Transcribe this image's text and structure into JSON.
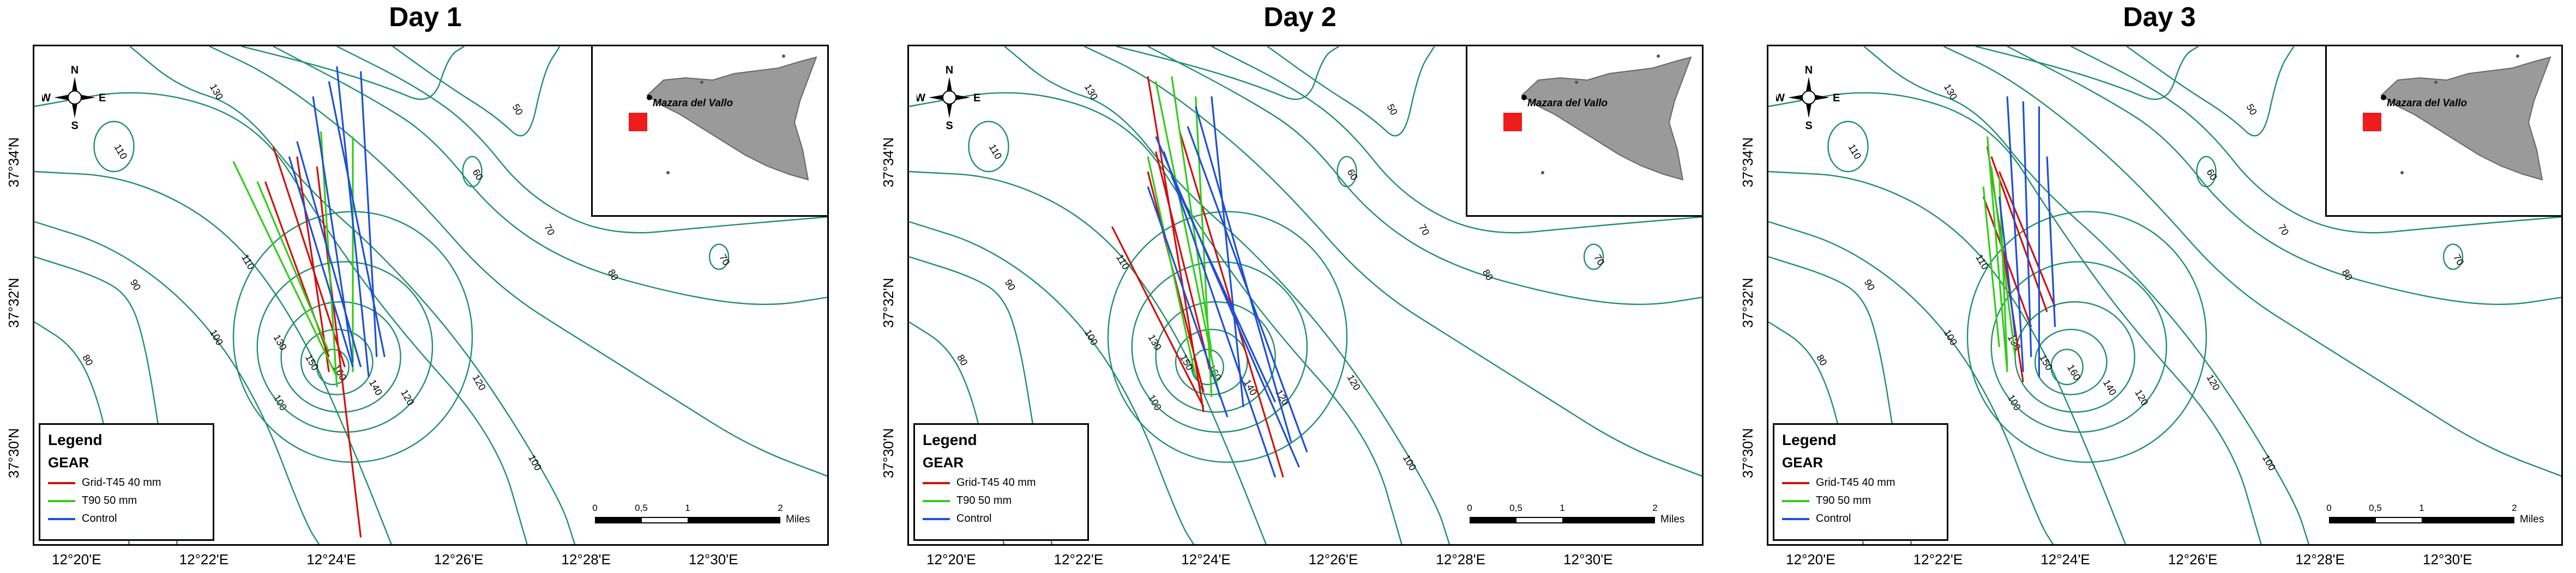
{
  "panels": [
    {
      "title": "Day 1",
      "tracks": [
        {
          "gear": "grid",
          "from": [
            0.3,
            0.2
          ],
          "to": [
            0.39,
            0.64
          ]
        },
        {
          "gear": "grid",
          "from": [
            0.33,
            0.22
          ],
          "to": [
            0.37,
            0.65
          ]
        },
        {
          "gear": "grid",
          "from": [
            0.355,
            0.24
          ],
          "to": [
            0.41,
            0.98
          ]
        },
        {
          "gear": "grid",
          "from": [
            0.29,
            0.27
          ],
          "to": [
            0.37,
            0.62
          ]
        },
        {
          "gear": "t90",
          "from": [
            0.25,
            0.23
          ],
          "to": [
            0.38,
            0.66
          ]
        },
        {
          "gear": "t90",
          "from": [
            0.36,
            0.17
          ],
          "to": [
            0.38,
            0.68
          ]
        },
        {
          "gear": "t90",
          "from": [
            0.4,
            0.18
          ],
          "to": [
            0.4,
            0.65
          ]
        },
        {
          "gear": "t90",
          "from": [
            0.28,
            0.27
          ],
          "to": [
            0.37,
            0.61
          ]
        },
        {
          "gear": "control",
          "from": [
            0.38,
            0.04
          ],
          "to": [
            0.42,
            0.66
          ]
        },
        {
          "gear": "control",
          "from": [
            0.41,
            0.05
          ],
          "to": [
            0.43,
            0.62
          ]
        },
        {
          "gear": "control",
          "from": [
            0.35,
            0.1
          ],
          "to": [
            0.4,
            0.63
          ]
        },
        {
          "gear": "control",
          "from": [
            0.33,
            0.19
          ],
          "to": [
            0.41,
            0.64
          ]
        },
        {
          "gear": "control",
          "from": [
            0.32,
            0.22
          ],
          "to": [
            0.4,
            0.64
          ]
        },
        {
          "gear": "control",
          "from": [
            0.37,
            0.07
          ],
          "to": [
            0.44,
            0.62
          ]
        }
      ]
    },
    {
      "title": "Day 2",
      "tracks": [
        {
          "gear": "grid",
          "from": [
            0.3,
            0.06
          ],
          "to": [
            0.37,
            0.73
          ]
        },
        {
          "gear": "grid",
          "from": [
            0.31,
            0.21
          ],
          "to": [
            0.38,
            0.66
          ]
        },
        {
          "gear": "grid",
          "from": [
            0.3,
            0.25
          ],
          "to": [
            0.37,
            0.69
          ]
        },
        {
          "gear": "grid",
          "from": [
            0.255,
            0.36
          ],
          "to": [
            0.37,
            0.72
          ]
        },
        {
          "gear": "grid",
          "from": [
            0.34,
            0.17
          ],
          "to": [
            0.47,
            0.86
          ]
        },
        {
          "gear": "t90",
          "from": [
            0.31,
            0.07
          ],
          "to": [
            0.39,
            0.7
          ]
        },
        {
          "gear": "t90",
          "from": [
            0.33,
            0.06
          ],
          "to": [
            0.38,
            0.61
          ]
        },
        {
          "gear": "t90",
          "from": [
            0.36,
            0.1
          ],
          "to": [
            0.38,
            0.7
          ]
        },
        {
          "gear": "t90",
          "from": [
            0.3,
            0.22
          ],
          "to": [
            0.36,
            0.66
          ]
        },
        {
          "gear": "control",
          "from": [
            0.31,
            0.18
          ],
          "to": [
            0.49,
            0.84
          ]
        },
        {
          "gear": "control",
          "from": [
            0.32,
            0.21
          ],
          "to": [
            0.46,
            0.86
          ]
        },
        {
          "gear": "control",
          "from": [
            0.35,
            0.16
          ],
          "to": [
            0.5,
            0.81
          ]
        },
        {
          "gear": "control",
          "from": [
            0.36,
            0.12
          ],
          "to": [
            0.48,
            0.79
          ]
        },
        {
          "gear": "control",
          "from": [
            0.33,
            0.26
          ],
          "to": [
            0.46,
            0.71
          ]
        },
        {
          "gear": "control",
          "from": [
            0.38,
            0.1
          ],
          "to": [
            0.42,
            0.72
          ]
        },
        {
          "gear": "control",
          "from": [
            0.3,
            0.28
          ],
          "to": [
            0.4,
            0.74
          ]
        }
      ]
    },
    {
      "title": "Day 3",
      "tracks": [
        {
          "gear": "grid",
          "from": [
            0.275,
            0.2
          ],
          "to": [
            0.32,
            0.67
          ]
        },
        {
          "gear": "grid",
          "from": [
            0.28,
            0.22
          ],
          "to": [
            0.35,
            0.53
          ]
        },
        {
          "gear": "grid",
          "from": [
            0.29,
            0.25
          ],
          "to": [
            0.36,
            0.52
          ]
        },
        {
          "gear": "grid",
          "from": [
            0.27,
            0.3
          ],
          "to": [
            0.33,
            0.56
          ]
        },
        {
          "gear": "t90",
          "from": [
            0.275,
            0.18
          ],
          "to": [
            0.3,
            0.65
          ]
        },
        {
          "gear": "t90",
          "from": [
            0.28,
            0.24
          ],
          "to": [
            0.31,
            0.62
          ]
        },
        {
          "gear": "t90",
          "from": [
            0.29,
            0.26
          ],
          "to": [
            0.3,
            0.64
          ]
        },
        {
          "gear": "t90",
          "from": [
            0.27,
            0.28
          ],
          "to": [
            0.29,
            0.6
          ]
        },
        {
          "gear": "control",
          "from": [
            0.3,
            0.1
          ],
          "to": [
            0.32,
            0.65
          ]
        },
        {
          "gear": "control",
          "from": [
            0.32,
            0.11
          ],
          "to": [
            0.33,
            0.62
          ]
        },
        {
          "gear": "control",
          "from": [
            0.34,
            0.12
          ],
          "to": [
            0.34,
            0.66
          ]
        },
        {
          "gear": "control",
          "from": [
            0.35,
            0.22
          ],
          "to": [
            0.36,
            0.56
          ]
        },
        {
          "gear": "control",
          "from": [
            0.29,
            0.3
          ],
          "to": [
            0.31,
            0.58
          ]
        }
      ]
    }
  ],
  "axes": {
    "lat_labels": [
      "37°34'N",
      "37°32'N",
      "37°30'N"
    ],
    "lon_labels": [
      "12°20'E",
      "12°22'E",
      "12°24'E",
      "12°26'E",
      "12°28'E",
      "12°30'E"
    ]
  },
  "compass": {
    "n": "N",
    "s": "S",
    "e": "E",
    "w": "W"
  },
  "inset": {
    "city": "Mazara del Vallo",
    "marker_color": "#ee1c1c",
    "land_color": "#9a9a9a"
  },
  "legend": {
    "title": "Legend",
    "subtitle": "GEAR",
    "items": [
      {
        "key": "grid",
        "label": "Grid-T45 40 mm",
        "color": "#d01010"
      },
      {
        "key": "t90",
        "label": "T90 50 mm",
        "color": "#33cc1a"
      },
      {
        "key": "control",
        "label": "Control",
        "color": "#1f4fd6"
      }
    ]
  },
  "scalebar": {
    "ticks": [
      "0",
      "0,5",
      "1",
      "2"
    ],
    "unit": "Miles"
  },
  "contours": {
    "color": "#1e8f6a",
    "labels": [
      "140",
      "130",
      "120",
      "110",
      "100",
      "90",
      "80",
      "70",
      "60",
      "50",
      "150",
      "160"
    ]
  }
}
